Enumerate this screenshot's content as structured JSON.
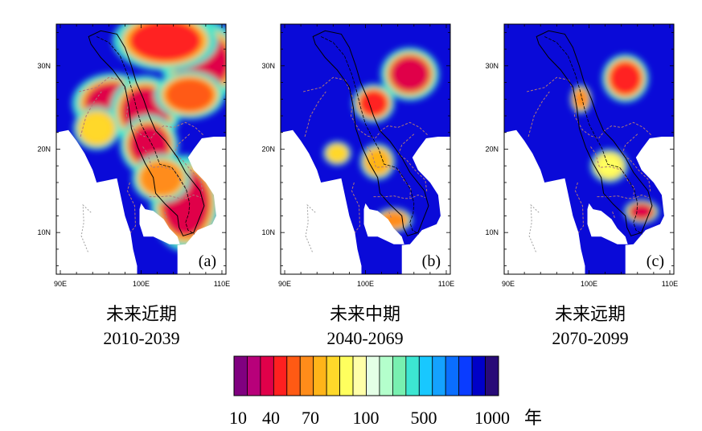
{
  "chart_data": {
    "type": "heatmap",
    "variable": "return period (years)",
    "x_ticks": [
      "90E",
      "100E",
      "110E"
    ],
    "y_ticks": [
      "30N",
      "20N",
      "10N"
    ],
    "x_range_deg": [
      89.5,
      110.5
    ],
    "y_range_deg": [
      5,
      35
    ],
    "panels": [
      {
        "label": "(a)",
        "title": "未来近期",
        "years": "2010-2039",
        "hotspots": [
          {
            "lon": 107.5,
            "lat": 30.5,
            "rx": 3.5,
            "ry": 3.5,
            "value": 30
          },
          {
            "lon": 103.0,
            "lat": 33.0,
            "rx": 4.5,
            "ry": 2.5,
            "value": 40
          },
          {
            "lon": 96.5,
            "lat": 25.5,
            "rx": 3.5,
            "ry": 2.5,
            "value": 30
          },
          {
            "lon": 100.5,
            "lat": 24.5,
            "rx": 3.0,
            "ry": 3.0,
            "value": 30
          },
          {
            "lon": 106.0,
            "lat": 26.5,
            "rx": 3.0,
            "ry": 2.0,
            "value": 50
          },
          {
            "lon": 101.0,
            "lat": 20.5,
            "rx": 2.5,
            "ry": 2.5,
            "value": 30
          },
          {
            "lon": 105.5,
            "lat": 13.5,
            "rx": 3.0,
            "ry": 4.0,
            "value": 30
          },
          {
            "lon": 102.5,
            "lat": 16.5,
            "rx": 2.5,
            "ry": 2.0,
            "value": 60
          },
          {
            "lon": 94.5,
            "lat": 22.5,
            "rx": 2.0,
            "ry": 1.8,
            "value": 80
          }
        ]
      },
      {
        "label": "(b)",
        "title": "未来中期",
        "years": "2040-2069",
        "hotspots": [
          {
            "lon": 105.5,
            "lat": 29.0,
            "rx": 2.5,
            "ry": 2.2,
            "value": 30
          },
          {
            "lon": 101.0,
            "lat": 25.5,
            "rx": 1.8,
            "ry": 1.6,
            "value": 40
          },
          {
            "lon": 101.5,
            "lat": 18.5,
            "rx": 1.5,
            "ry": 1.5,
            "value": 70
          },
          {
            "lon": 103.5,
            "lat": 11.5,
            "rx": 1.6,
            "ry": 1.0,
            "value": 60
          },
          {
            "lon": 96.5,
            "lat": 19.5,
            "rx": 1.2,
            "ry": 1.0,
            "value": 80
          }
        ]
      },
      {
        "label": "(c)",
        "title": "未来远期",
        "years": "2070-2099",
        "hotspots": [
          {
            "lon": 104.5,
            "lat": 28.5,
            "rx": 2.0,
            "ry": 2.0,
            "value": 40
          },
          {
            "lon": 99.0,
            "lat": 26.0,
            "rx": 0.9,
            "ry": 1.2,
            "value": 60
          },
          {
            "lon": 106.5,
            "lat": 12.5,
            "rx": 1.5,
            "ry": 1.0,
            "value": 30
          },
          {
            "lon": 102.5,
            "lat": 18.0,
            "rx": 1.6,
            "ry": 1.4,
            "value": 90
          }
        ]
      }
    ],
    "colorbar": {
      "colors": [
        "#800080",
        "#b8007a",
        "#e0004a",
        "#ff2020",
        "#ff5a14",
        "#ff8c1a",
        "#ffb419",
        "#ffd82a",
        "#ffff5e",
        "#ffffa8",
        "#e4ffe6",
        "#b4ffcc",
        "#78f0b0",
        "#3ce6d2",
        "#18c8ff",
        "#14a2ff",
        "#0a6eff",
        "#0a3cff",
        "#0000c8",
        "#280a78"
      ],
      "tick_labels": [
        "10",
        "40",
        "70",
        "100",
        "500",
        "1000"
      ],
      "unit": "年"
    }
  }
}
